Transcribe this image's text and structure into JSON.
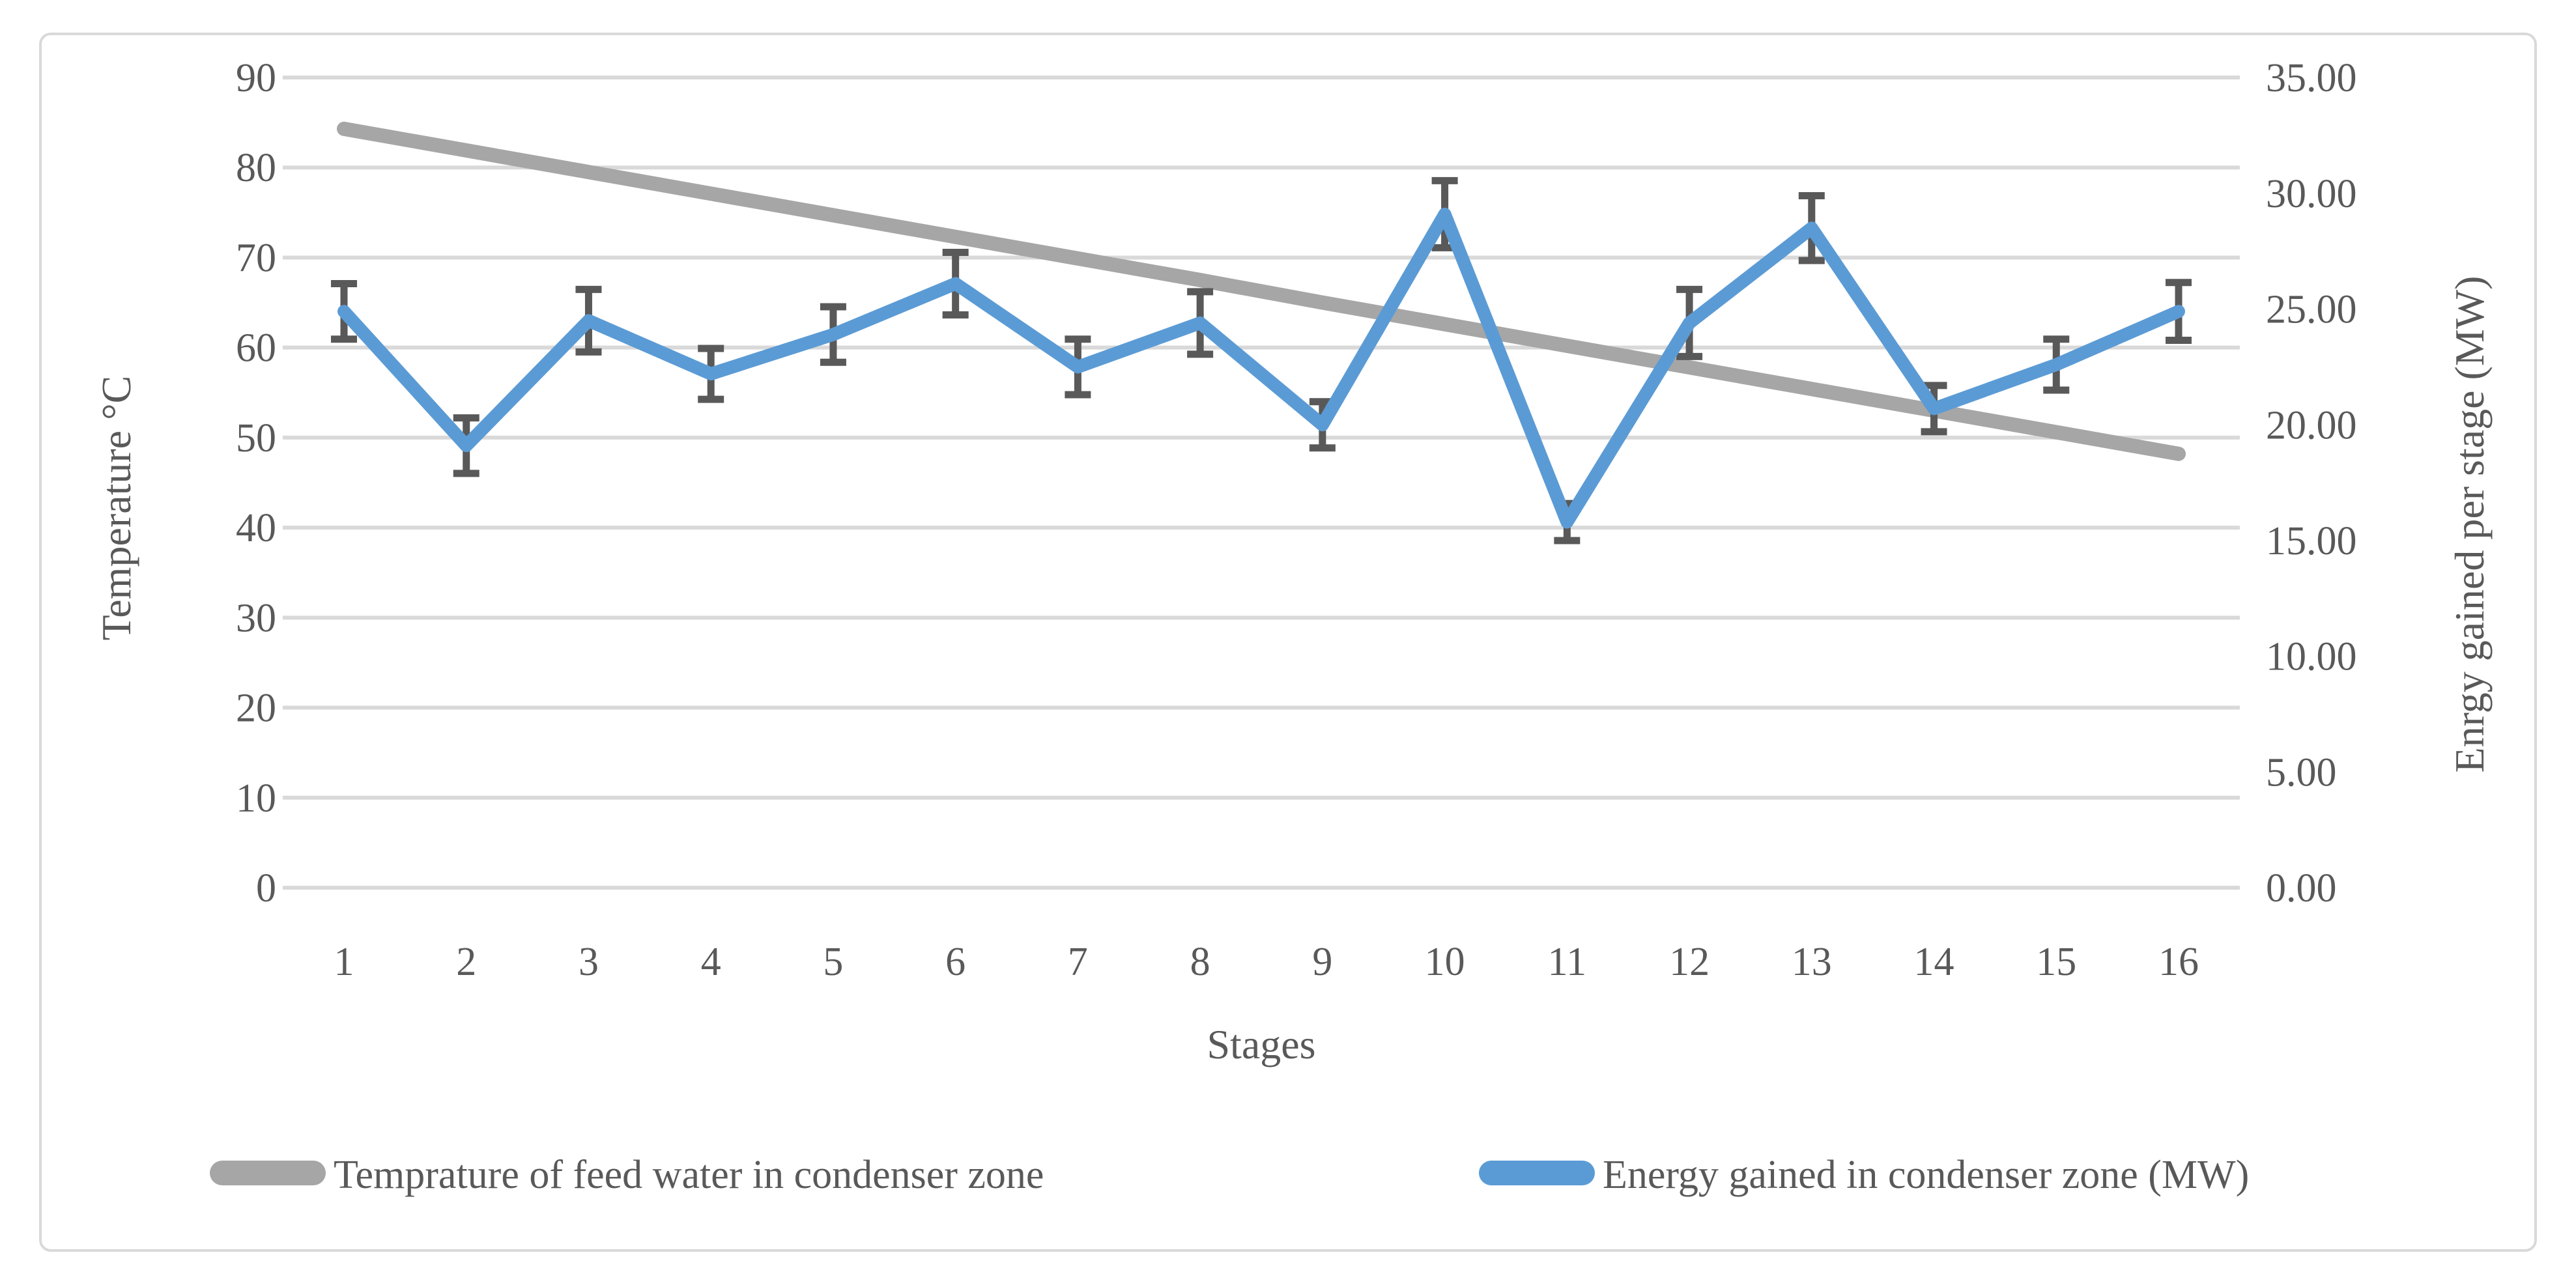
{
  "chart_data": {
    "type": "line",
    "title": "",
    "xlabel": "Stages",
    "categories": [
      1,
      2,
      3,
      4,
      5,
      6,
      7,
      8,
      9,
      10,
      11,
      12,
      13,
      14,
      15,
      16
    ],
    "x_tick_labels": [
      "1",
      "2",
      "3",
      "4",
      "5",
      "6",
      "7",
      "8",
      "9",
      "10",
      "11",
      "12",
      "13",
      "14",
      "15",
      "16"
    ],
    "left_axis": {
      "title": "Temperature °C",
      "min": 0,
      "max": 90,
      "step": 10,
      "tick_labels": [
        "0",
        "10",
        "20",
        "30",
        "40",
        "50",
        "60",
        "70",
        "80",
        "90"
      ]
    },
    "right_axis": {
      "title": "Enrgy gained per stage (MW)",
      "min": 0,
      "max": 35,
      "step": 5,
      "tick_labels": [
        "0.00",
        "5.00",
        "10.00",
        "15.00",
        "20.00",
        "25.00",
        "30.00",
        "35.00"
      ]
    },
    "grid": true,
    "legend_position": "bottom",
    "series": [
      {
        "name": "Temprature of feed water in condenser zone",
        "axis": "left",
        "color": "#A6A6A6",
        "values": [
          84.3,
          81.9,
          79.5,
          77.1,
          74.7,
          72.3,
          69.9,
          67.5,
          65.0,
          62.6,
          60.2,
          57.8,
          55.4,
          53.0,
          50.6,
          48.2
        ]
      },
      {
        "name": "Energy gained in condenser zone (MW)",
        "axis": "right",
        "color": "#5B9BD5",
        "values": [
          24.9,
          19.1,
          24.5,
          22.2,
          23.9,
          26.1,
          22.5,
          24.4,
          20.0,
          29.1,
          15.8,
          24.4,
          28.5,
          20.7,
          22.6,
          24.9
        ],
        "error_bars": [
          1.2,
          1.2,
          1.35,
          1.1,
          1.2,
          1.35,
          1.2,
          1.35,
          1.0,
          1.45,
          0.8,
          1.45,
          1.4,
          1.0,
          1.1,
          1.25
        ],
        "error_bar_color": "#595959"
      }
    ],
    "colors": {
      "gridline": "#D9D9D9",
      "frame_border": "#D9D9D9",
      "text": "#595959"
    }
  }
}
